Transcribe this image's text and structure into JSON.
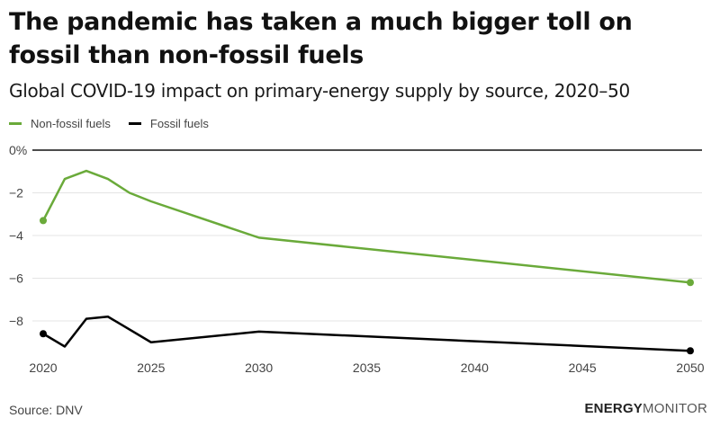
{
  "header": {
    "title": "The pandemic has taken a much bigger toll on fossil than non-fossil fuels",
    "subtitle": "Global COVID-19 impact on primary-energy supply by source, 2020–50"
  },
  "footer": {
    "source": "Source: DNV",
    "brand_bold": "ENERGY",
    "brand_light": "MONITOR"
  },
  "chart_data": {
    "type": "line",
    "title": "The pandemic has taken a much bigger toll on fossil than non-fossil fuels",
    "subtitle": "Global COVID-19 impact on primary-energy supply by source, 2020–50",
    "xlabel": "",
    "ylabel": "",
    "xlim": [
      2020,
      2050
    ],
    "ylim": [
      -9.5,
      0
    ],
    "x_ticks": [
      2020,
      2025,
      2030,
      2035,
      2040,
      2045,
      2050
    ],
    "x_tick_labels": [
      "2020",
      "2025",
      "2030",
      "2035",
      "2040",
      "2045",
      "2050"
    ],
    "y_ticks": [
      0,
      -2,
      -4,
      -6,
      -8
    ],
    "y_tick_labels": [
      "0%",
      "−2",
      "−4",
      "−6",
      "−8"
    ],
    "grid": true,
    "legend_position": "top-left",
    "series": [
      {
        "name": "Non-fossil fuels",
        "color": "#6aaa3a",
        "x": [
          2020,
          2021,
          2022,
          2023,
          2024,
          2025,
          2030,
          2050
        ],
        "values": [
          -3.3,
          -1.35,
          -0.97,
          -1.35,
          -2.0,
          -2.4,
          -4.1,
          -6.2
        ]
      },
      {
        "name": "Fossil fuels",
        "color": "#000000",
        "x": [
          2020,
          2021,
          2022,
          2023,
          2025,
          2030,
          2050
        ],
        "values": [
          -8.6,
          -9.2,
          -7.9,
          -7.8,
          -9.0,
          -8.5,
          -9.4
        ]
      }
    ]
  }
}
